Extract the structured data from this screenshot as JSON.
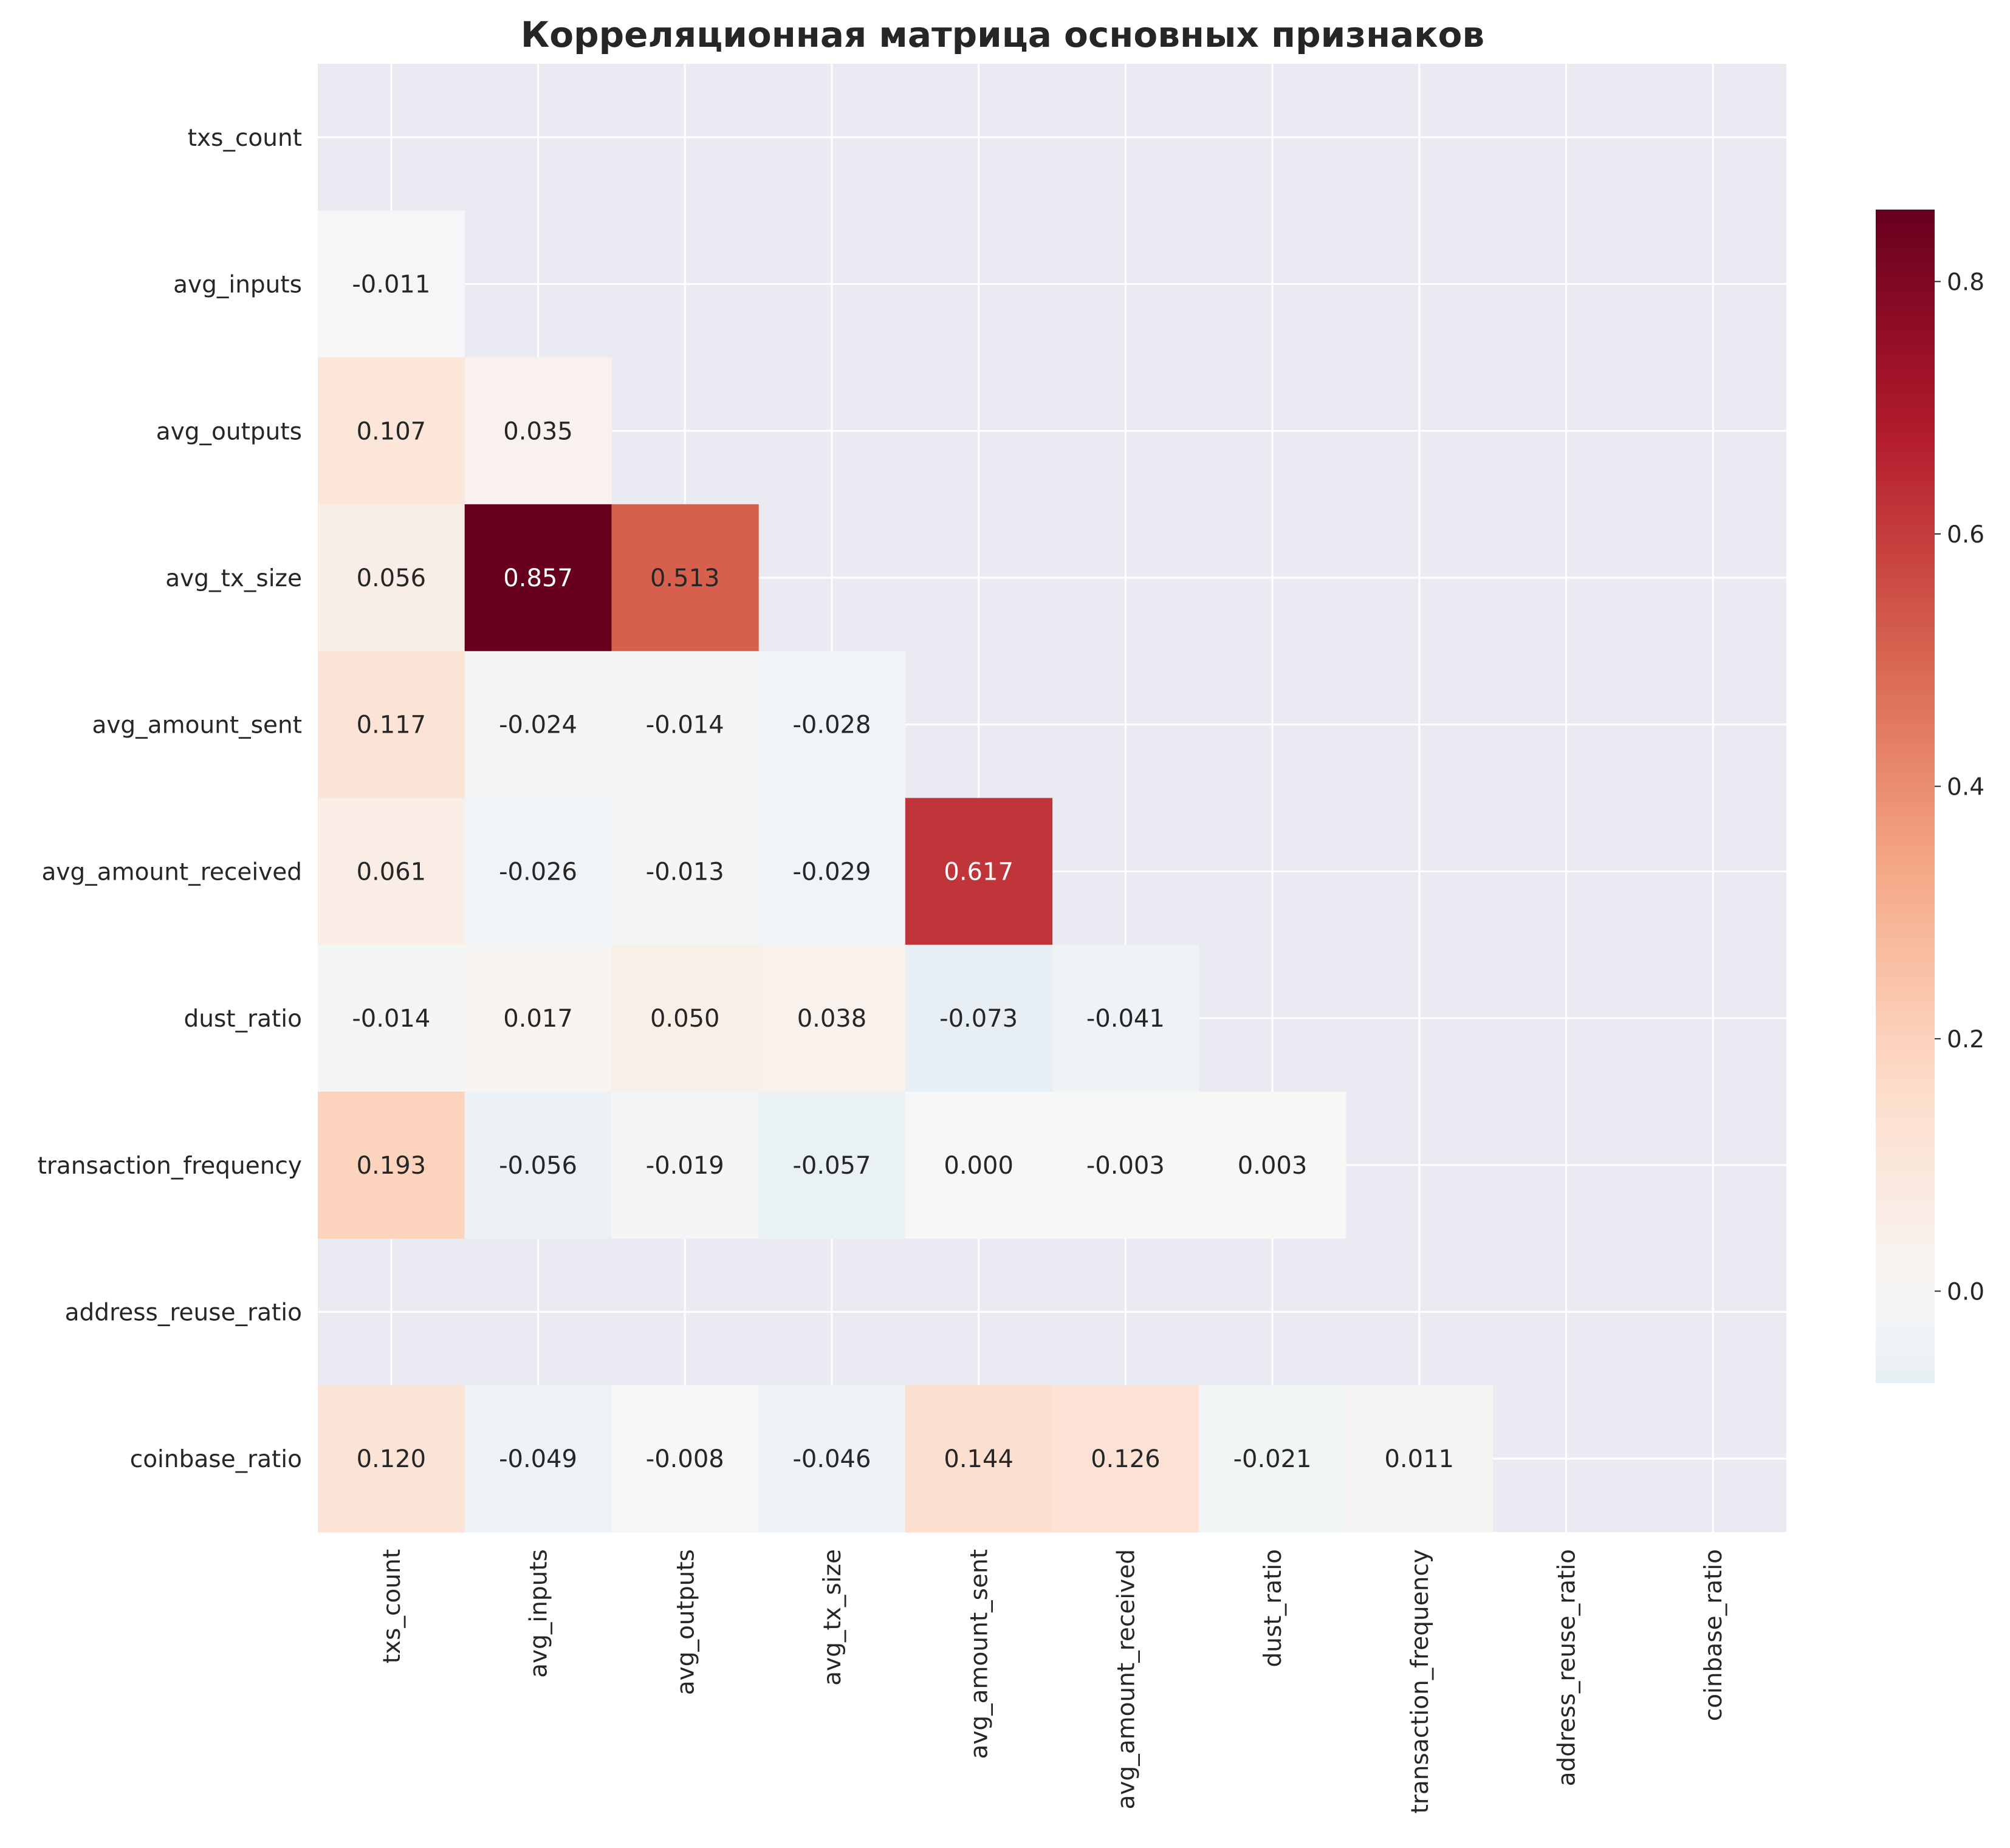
{
  "chart_data": {
    "type": "heatmap",
    "title": "Корреляционная матрица основных признаков",
    "labels": [
      "txs_count",
      "avg_inputs",
      "avg_outputs",
      "avg_tx_size",
      "avg_amount_sent",
      "avg_amount_received",
      "dust_ratio",
      "transaction_frequency",
      "address_reuse_ratio",
      "coinbase_ratio"
    ],
    "mask": "upper-triangle-and-diagonal",
    "values": [
      [
        null,
        null,
        null,
        null,
        null,
        null,
        null,
        null,
        null,
        null
      ],
      [
        -0.011,
        null,
        null,
        null,
        null,
        null,
        null,
        null,
        null,
        null
      ],
      [
        0.107,
        0.035,
        null,
        null,
        null,
        null,
        null,
        null,
        null,
        null
      ],
      [
        0.056,
        0.857,
        0.513,
        null,
        null,
        null,
        null,
        null,
        null,
        null
      ],
      [
        0.117,
        -0.024,
        -0.014,
        -0.028,
        null,
        null,
        null,
        null,
        null,
        null
      ],
      [
        0.061,
        -0.026,
        -0.013,
        -0.029,
        0.617,
        null,
        null,
        null,
        null,
        null
      ],
      [
        -0.014,
        0.017,
        0.05,
        0.038,
        -0.073,
        -0.041,
        null,
        null,
        null,
        null
      ],
      [
        0.193,
        -0.056,
        -0.019,
        -0.057,
        0.0,
        -0.003,
        0.003,
        null,
        null,
        null
      ],
      [
        null,
        null,
        null,
        null,
        null,
        null,
        null,
        null,
        null,
        null
      ],
      [
        0.12,
        -0.049,
        -0.008,
        -0.046,
        0.144,
        0.126,
        -0.021,
        0.011,
        null,
        null
      ]
    ],
    "value_format": "3 decimals",
    "colormap": "RdBu_r",
    "colorbar": {
      "vmin": -0.073,
      "vmax": 0.857,
      "center": 0.0,
      "ticks": [
        0.0,
        0.2,
        0.4,
        0.6,
        0.8
      ],
      "tick_labels": [
        "0.0",
        "0.2",
        "0.4",
        "0.6",
        "0.8"
      ]
    },
    "grid": true,
    "legend": "colorbar-right"
  }
}
